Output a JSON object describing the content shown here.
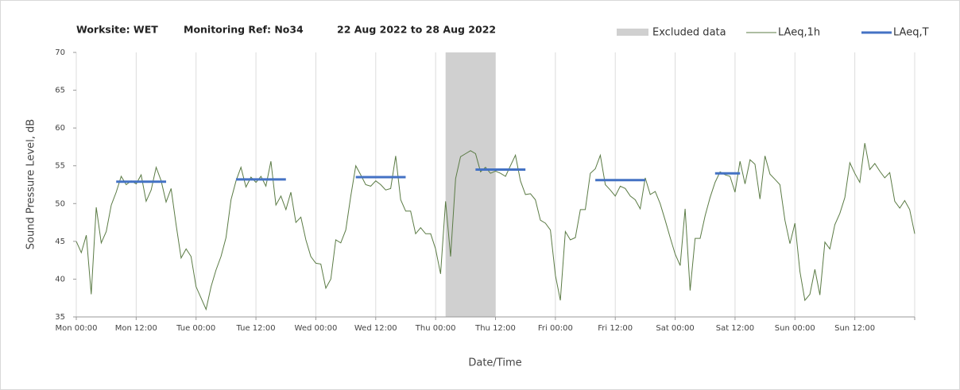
{
  "chart_data": {
    "type": "line",
    "title": [
      "Worksite: WET",
      "Monitoring Ref: No34",
      "22 Aug 2022 to 28 Aug 2022"
    ],
    "y_label": "Sound Pressure Level, dB",
    "x_label": "Date/Time",
    "xlim": [
      0,
      168
    ],
    "xticks": [
      {
        "value": 0,
        "label": "Mon 00:00"
      },
      {
        "value": 12,
        "label": "Mon 12:00"
      },
      {
        "value": 24,
        "label": "Tue 00:00"
      },
      {
        "value": 36,
        "label": "Tue 12:00"
      },
      {
        "value": 48,
        "label": "Wed 00:00"
      },
      {
        "value": 60,
        "label": "Wed 12:00"
      },
      {
        "value": 72,
        "label": "Thu 00:00"
      },
      {
        "value": 84,
        "label": "Thu 12:00"
      },
      {
        "value": 96,
        "label": "Fri 00:00"
      },
      {
        "value": 108,
        "label": "Fri 12:00"
      },
      {
        "value": 120,
        "label": "Sat 00:00"
      },
      {
        "value": 132,
        "label": "Sat 12:00"
      },
      {
        "value": 144,
        "label": "Sun 00:00"
      },
      {
        "value": 156,
        "label": "Sun 12:00"
      },
      {
        "value": 168,
        "label": ""
      }
    ],
    "ylim": [
      35,
      70
    ],
    "yticks": [
      35,
      40,
      45,
      50,
      55,
      60,
      65,
      70
    ],
    "grid": true,
    "excluded": {
      "name": "Excluded data",
      "color": "#d0d0d0",
      "x": [
        74,
        84
      ]
    },
    "series": [
      {
        "name": "LAeq,1h",
        "color": "#5b7b45",
        "x": [
          0,
          1,
          2,
          3,
          4,
          5,
          6,
          7,
          8,
          9,
          10,
          11,
          12,
          13,
          14,
          15,
          16,
          17,
          18,
          19,
          20,
          21,
          22,
          23,
          24,
          25,
          26,
          27,
          28,
          29,
          30,
          31,
          32,
          33,
          34,
          35,
          36,
          37,
          38,
          39,
          40,
          41,
          42,
          43,
          44,
          45,
          46,
          47,
          48,
          49,
          50,
          51,
          52,
          53,
          54,
          55,
          56,
          57,
          58,
          59,
          60,
          61,
          62,
          63,
          64,
          65,
          66,
          67,
          68,
          69,
          70,
          71,
          72,
          73,
          74,
          75,
          76,
          77,
          78,
          79,
          80,
          81,
          82,
          83,
          84,
          85,
          86,
          87,
          88,
          89,
          90,
          91,
          92,
          93,
          94,
          95,
          96,
          97,
          98,
          99,
          100,
          101,
          102,
          103,
          104,
          105,
          106,
          107,
          108,
          109,
          110,
          111,
          112,
          113,
          114,
          115,
          116,
          117,
          118,
          119,
          120,
          121,
          122,
          123,
          124,
          125,
          126,
          127,
          128,
          129,
          130,
          131,
          132,
          133,
          134,
          135,
          136,
          137,
          138,
          139,
          140,
          141,
          142,
          143,
          144,
          145,
          146,
          147,
          148,
          149,
          150,
          151,
          152,
          153,
          154,
          155,
          156,
          157,
          158,
          159,
          160,
          161,
          162,
          163,
          164,
          165,
          166,
          167,
          168
        ],
        "values": [
          45,
          43.5,
          45.8,
          38,
          49.5,
          44.8,
          46.3,
          49.8,
          51.5,
          53.6,
          52.5,
          53,
          52.6,
          53.8,
          50.3,
          51.8,
          54.8,
          53,
          50.2,
          52,
          47.2,
          42.8,
          44,
          43,
          39,
          37.5,
          36,
          39,
          41.2,
          43,
          45.5,
          50.5,
          53,
          54.8,
          52.2,
          53.5,
          52.8,
          53.6,
          52.3,
          55.6,
          49.8,
          51,
          49.2,
          51.5,
          47.5,
          48.2,
          45.2,
          43,
          42.1,
          42,
          38.8,
          40,
          45.2,
          44.8,
          46.5,
          51,
          55,
          53.8,
          52.5,
          52.3,
          53,
          52.5,
          51.8,
          52,
          56.3,
          50.5,
          49,
          49,
          46,
          46.8,
          46,
          46,
          44,
          40.7,
          50.3,
          43,
          53.3,
          56.2,
          56.6,
          57,
          56.6,
          54.2,
          54.8,
          54,
          54.3,
          54,
          53.6,
          55,
          56.4,
          53,
          51.2,
          51.3,
          50.5,
          47.8,
          47.4,
          46.5,
          40.5,
          37.2,
          46.3,
          45.2,
          45.5,
          49.2,
          49.2,
          54,
          54.6,
          56.4,
          52.5,
          51.8,
          51,
          52.3,
          52,
          51,
          50.5,
          49.3,
          53.4,
          51.2,
          51.6,
          50,
          47.8,
          45.5,
          43.3,
          41.8,
          49.3,
          38.5,
          45.4,
          45.4,
          48.4,
          50.8,
          52.8,
          54.2,
          53.8,
          53.6,
          51.5,
          55.6,
          52.6,
          55.8,
          55.2,
          50.6,
          56.3,
          53.9,
          53.2,
          52.5,
          47.8,
          44.7,
          47.4,
          41,
          37.2,
          38,
          41.3,
          37.9,
          44.9,
          44,
          47.2,
          48.7,
          50.8,
          55.4,
          54,
          52.8,
          58,
          54.5,
          55.3,
          54.3,
          53.4,
          54.1,
          50.3,
          49.4,
          50.4,
          49.2,
          46
        ]
      },
      {
        "name": "LAeq,T",
        "color": "#4472c4",
        "segments": [
          {
            "x": [
              8,
              18
            ],
            "value": 52.9
          },
          {
            "x": [
              32,
              42
            ],
            "value": 53.2
          },
          {
            "x": [
              56,
              66
            ],
            "value": 53.5
          },
          {
            "x": [
              80,
              90
            ],
            "value": 54.5
          },
          {
            "x": [
              104,
              114
            ],
            "value": 53.1
          },
          {
            "x": [
              128,
              133
            ],
            "value": 54.0
          }
        ]
      }
    ]
  }
}
